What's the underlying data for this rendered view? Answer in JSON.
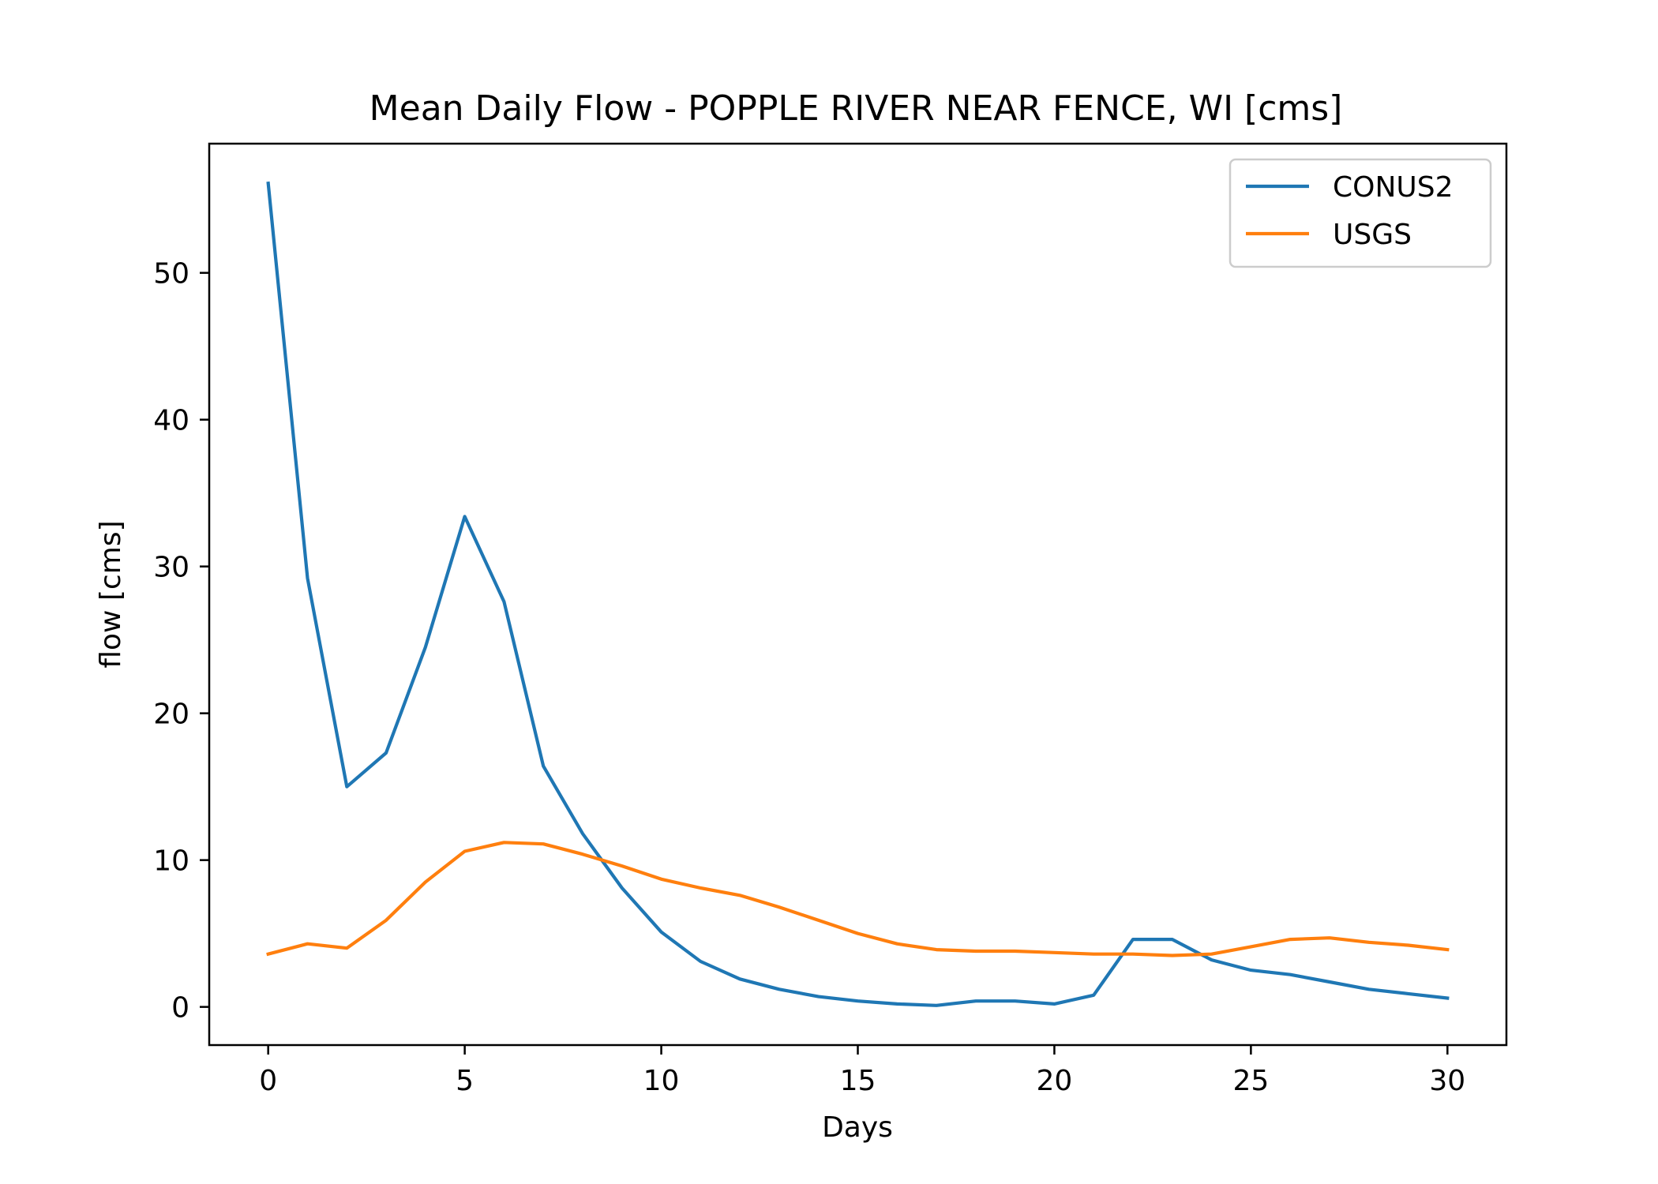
{
  "chart_data": {
    "type": "line",
    "title": "Mean Daily Flow - POPPLE RIVER NEAR FENCE, WI [cms]",
    "xlabel": "Days",
    "ylabel": "flow [cms]",
    "xlim": [
      -1.5,
      31.5
    ],
    "ylim": [
      -2.6,
      58.8
    ],
    "xticks": [
      0,
      5,
      10,
      15,
      20,
      25,
      30
    ],
    "yticks": [
      0,
      10,
      20,
      30,
      40,
      50
    ],
    "grid": false,
    "legend_position": "upper right",
    "x": [
      0,
      1,
      2,
      3,
      4,
      5,
      6,
      7,
      8,
      9,
      10,
      11,
      12,
      13,
      14,
      15,
      16,
      17,
      18,
      19,
      20,
      21,
      22,
      23,
      24,
      25,
      26,
      27,
      28,
      29,
      30
    ],
    "series": [
      {
        "name": "CONUS2",
        "color": "#1f77b4",
        "values": [
          56.1,
          29.2,
          15.0,
          17.3,
          24.5,
          33.4,
          27.6,
          16.4,
          11.8,
          8.1,
          5.1,
          3.1,
          1.9,
          1.2,
          0.7,
          0.4,
          0.2,
          0.1,
          0.4,
          0.4,
          0.2,
          0.8,
          4.6,
          4.6,
          3.2,
          2.5,
          2.2,
          1.7,
          1.2,
          0.9,
          0.6
        ]
      },
      {
        "name": "USGS",
        "color": "#ff7f0e",
        "values": [
          3.6,
          4.3,
          4.0,
          5.9,
          8.5,
          10.6,
          11.2,
          11.1,
          10.4,
          9.6,
          8.7,
          8.1,
          7.6,
          6.8,
          5.9,
          5.0,
          4.3,
          3.9,
          3.8,
          3.8,
          3.7,
          3.6,
          3.6,
          3.5,
          3.6,
          4.1,
          4.6,
          4.7,
          4.4,
          4.2,
          3.9
        ]
      }
    ]
  }
}
